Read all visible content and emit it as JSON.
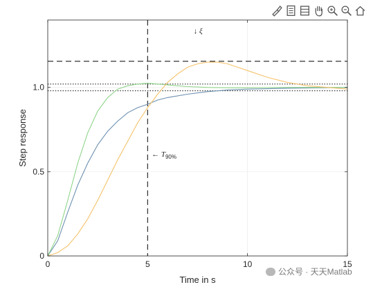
{
  "toolbar": {
    "icons": [
      "brush-icon",
      "legend-icon",
      "colorbar-icon",
      "pan-icon",
      "zoom-in-icon",
      "zoom-out-icon",
      "home-icon"
    ]
  },
  "chart_data": {
    "type": "line",
    "title": "",
    "xlabel": "Time in s",
    "ylabel": "Step response",
    "xlim": [
      0,
      15
    ],
    "ylim": [
      0,
      1.4
    ],
    "xticks": [
      0,
      5,
      10,
      15
    ],
    "xtick_labels": [
      "0",
      "5",
      "10",
      "15"
    ],
    "yticks": [
      0,
      0.5,
      1.0
    ],
    "ytick_labels": [
      "0",
      "0.5",
      "1.0"
    ],
    "grid": true,
    "series": [
      {
        "color": "#6b8fb0",
        "x": [
          0,
          0.5,
          1,
          1.5,
          2,
          2.5,
          3,
          3.5,
          4,
          4.5,
          5,
          5.5,
          6,
          7,
          8,
          9,
          10,
          12,
          15
        ],
        "y": [
          0,
          0.09,
          0.26,
          0.42,
          0.55,
          0.66,
          0.74,
          0.8,
          0.85,
          0.88,
          0.9,
          0.925,
          0.94,
          0.96,
          0.975,
          0.985,
          0.99,
          0.995,
          1.0
        ]
      },
      {
        "color": "#8fd48a",
        "x": [
          0,
          0.5,
          1,
          1.5,
          2,
          2.5,
          3,
          3.5,
          4,
          4.5,
          5,
          5.5,
          6,
          7,
          8,
          9,
          10,
          12,
          15
        ],
        "y": [
          0,
          0.12,
          0.33,
          0.55,
          0.73,
          0.86,
          0.94,
          0.99,
          1.01,
          1.02,
          1.025,
          1.02,
          1.015,
          1.005,
          1.0,
          0.998,
          0.998,
          1.0,
          1.0
        ]
      },
      {
        "color": "#f5c26b",
        "x": [
          0,
          0.5,
          1,
          1.5,
          2,
          2.5,
          3,
          3.5,
          4,
          4.5,
          5,
          5.5,
          6,
          6.5,
          7,
          7.5,
          8,
          8.5,
          9,
          9.5,
          10,
          11,
          12,
          13,
          14,
          15
        ],
        "y": [
          0,
          0.02,
          0.06,
          0.13,
          0.22,
          0.33,
          0.45,
          0.57,
          0.68,
          0.79,
          0.88,
          0.96,
          1.03,
          1.08,
          1.12,
          1.14,
          1.15,
          1.15,
          1.14,
          1.12,
          1.1,
          1.06,
          1.03,
          1.01,
          1.0,
          0.99
        ]
      }
    ],
    "reference_lines": [
      {
        "orientation": "horizontal",
        "value": 1.155,
        "style": "dashed"
      },
      {
        "orientation": "horizontal",
        "value": 1.02,
        "style": "dotted"
      },
      {
        "orientation": "horizontal",
        "value": 0.98,
        "style": "dotted"
      },
      {
        "orientation": "vertical",
        "value": 5,
        "style": "dashed"
      }
    ],
    "annotations": [
      {
        "text": "↓ ξ",
        "x": 7.3,
        "y": 1.32
      },
      {
        "text": "← T",
        "subscript": "90%",
        "x": 5.2,
        "y": 0.59
      }
    ]
  },
  "watermark": {
    "text": "公众号 · 天天Matlab"
  }
}
